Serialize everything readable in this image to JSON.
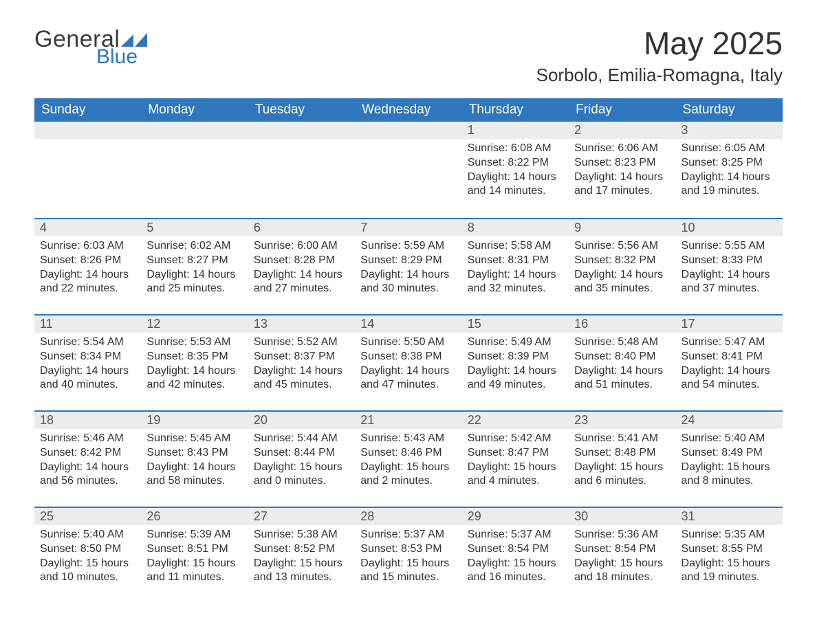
{
  "brand": {
    "word1": "General",
    "word2": "Blue",
    "accent_color": "#2e77bd",
    "text_color": "#3b3b3b"
  },
  "header": {
    "month_title": "May 2025",
    "location": "Sorbolo, Emilia-Romagna, Italy"
  },
  "colors": {
    "header_bg": "#2e77bd",
    "header_text": "#ffffff",
    "daynum_bg": "#ececec",
    "row_divider": "#2e77bd",
    "body_text": "#333333",
    "page_bg": "#ffffff"
  },
  "typography": {
    "month_title_fontsize": 46,
    "location_fontsize": 26,
    "weekday_fontsize": 19,
    "daynum_fontsize": 18,
    "body_fontsize": 16
  },
  "calendar": {
    "type": "table",
    "weekdays": [
      "Sunday",
      "Monday",
      "Tuesday",
      "Wednesday",
      "Thursday",
      "Friday",
      "Saturday"
    ],
    "leading_blanks": 4,
    "days": [
      {
        "n": "1",
        "sunrise": "Sunrise: 6:08 AM",
        "sunset": "Sunset: 8:22 PM",
        "daylight1": "Daylight: 14 hours",
        "daylight2": "and 14 minutes."
      },
      {
        "n": "2",
        "sunrise": "Sunrise: 6:06 AM",
        "sunset": "Sunset: 8:23 PM",
        "daylight1": "Daylight: 14 hours",
        "daylight2": "and 17 minutes."
      },
      {
        "n": "3",
        "sunrise": "Sunrise: 6:05 AM",
        "sunset": "Sunset: 8:25 PM",
        "daylight1": "Daylight: 14 hours",
        "daylight2": "and 19 minutes."
      },
      {
        "n": "4",
        "sunrise": "Sunrise: 6:03 AM",
        "sunset": "Sunset: 8:26 PM",
        "daylight1": "Daylight: 14 hours",
        "daylight2": "and 22 minutes."
      },
      {
        "n": "5",
        "sunrise": "Sunrise: 6:02 AM",
        "sunset": "Sunset: 8:27 PM",
        "daylight1": "Daylight: 14 hours",
        "daylight2": "and 25 minutes."
      },
      {
        "n": "6",
        "sunrise": "Sunrise: 6:00 AM",
        "sunset": "Sunset: 8:28 PM",
        "daylight1": "Daylight: 14 hours",
        "daylight2": "and 27 minutes."
      },
      {
        "n": "7",
        "sunrise": "Sunrise: 5:59 AM",
        "sunset": "Sunset: 8:29 PM",
        "daylight1": "Daylight: 14 hours",
        "daylight2": "and 30 minutes."
      },
      {
        "n": "8",
        "sunrise": "Sunrise: 5:58 AM",
        "sunset": "Sunset: 8:31 PM",
        "daylight1": "Daylight: 14 hours",
        "daylight2": "and 32 minutes."
      },
      {
        "n": "9",
        "sunrise": "Sunrise: 5:56 AM",
        "sunset": "Sunset: 8:32 PM",
        "daylight1": "Daylight: 14 hours",
        "daylight2": "and 35 minutes."
      },
      {
        "n": "10",
        "sunrise": "Sunrise: 5:55 AM",
        "sunset": "Sunset: 8:33 PM",
        "daylight1": "Daylight: 14 hours",
        "daylight2": "and 37 minutes."
      },
      {
        "n": "11",
        "sunrise": "Sunrise: 5:54 AM",
        "sunset": "Sunset: 8:34 PM",
        "daylight1": "Daylight: 14 hours",
        "daylight2": "and 40 minutes."
      },
      {
        "n": "12",
        "sunrise": "Sunrise: 5:53 AM",
        "sunset": "Sunset: 8:35 PM",
        "daylight1": "Daylight: 14 hours",
        "daylight2": "and 42 minutes."
      },
      {
        "n": "13",
        "sunrise": "Sunrise: 5:52 AM",
        "sunset": "Sunset: 8:37 PM",
        "daylight1": "Daylight: 14 hours",
        "daylight2": "and 45 minutes."
      },
      {
        "n": "14",
        "sunrise": "Sunrise: 5:50 AM",
        "sunset": "Sunset: 8:38 PM",
        "daylight1": "Daylight: 14 hours",
        "daylight2": "and 47 minutes."
      },
      {
        "n": "15",
        "sunrise": "Sunrise: 5:49 AM",
        "sunset": "Sunset: 8:39 PM",
        "daylight1": "Daylight: 14 hours",
        "daylight2": "and 49 minutes."
      },
      {
        "n": "16",
        "sunrise": "Sunrise: 5:48 AM",
        "sunset": "Sunset: 8:40 PM",
        "daylight1": "Daylight: 14 hours",
        "daylight2": "and 51 minutes."
      },
      {
        "n": "17",
        "sunrise": "Sunrise: 5:47 AM",
        "sunset": "Sunset: 8:41 PM",
        "daylight1": "Daylight: 14 hours",
        "daylight2": "and 54 minutes."
      },
      {
        "n": "18",
        "sunrise": "Sunrise: 5:46 AM",
        "sunset": "Sunset: 8:42 PM",
        "daylight1": "Daylight: 14 hours",
        "daylight2": "and 56 minutes."
      },
      {
        "n": "19",
        "sunrise": "Sunrise: 5:45 AM",
        "sunset": "Sunset: 8:43 PM",
        "daylight1": "Daylight: 14 hours",
        "daylight2": "and 58 minutes."
      },
      {
        "n": "20",
        "sunrise": "Sunrise: 5:44 AM",
        "sunset": "Sunset: 8:44 PM",
        "daylight1": "Daylight: 15 hours",
        "daylight2": "and 0 minutes."
      },
      {
        "n": "21",
        "sunrise": "Sunrise: 5:43 AM",
        "sunset": "Sunset: 8:46 PM",
        "daylight1": "Daylight: 15 hours",
        "daylight2": "and 2 minutes."
      },
      {
        "n": "22",
        "sunrise": "Sunrise: 5:42 AM",
        "sunset": "Sunset: 8:47 PM",
        "daylight1": "Daylight: 15 hours",
        "daylight2": "and 4 minutes."
      },
      {
        "n": "23",
        "sunrise": "Sunrise: 5:41 AM",
        "sunset": "Sunset: 8:48 PM",
        "daylight1": "Daylight: 15 hours",
        "daylight2": "and 6 minutes."
      },
      {
        "n": "24",
        "sunrise": "Sunrise: 5:40 AM",
        "sunset": "Sunset: 8:49 PM",
        "daylight1": "Daylight: 15 hours",
        "daylight2": "and 8 minutes."
      },
      {
        "n": "25",
        "sunrise": "Sunrise: 5:40 AM",
        "sunset": "Sunset: 8:50 PM",
        "daylight1": "Daylight: 15 hours",
        "daylight2": "and 10 minutes."
      },
      {
        "n": "26",
        "sunrise": "Sunrise: 5:39 AM",
        "sunset": "Sunset: 8:51 PM",
        "daylight1": "Daylight: 15 hours",
        "daylight2": "and 11 minutes."
      },
      {
        "n": "27",
        "sunrise": "Sunrise: 5:38 AM",
        "sunset": "Sunset: 8:52 PM",
        "daylight1": "Daylight: 15 hours",
        "daylight2": "and 13 minutes."
      },
      {
        "n": "28",
        "sunrise": "Sunrise: 5:37 AM",
        "sunset": "Sunset: 8:53 PM",
        "daylight1": "Daylight: 15 hours",
        "daylight2": "and 15 minutes."
      },
      {
        "n": "29",
        "sunrise": "Sunrise: 5:37 AM",
        "sunset": "Sunset: 8:54 PM",
        "daylight1": "Daylight: 15 hours",
        "daylight2": "and 16 minutes."
      },
      {
        "n": "30",
        "sunrise": "Sunrise: 5:36 AM",
        "sunset": "Sunset: 8:54 PM",
        "daylight1": "Daylight: 15 hours",
        "daylight2": "and 18 minutes."
      },
      {
        "n": "31",
        "sunrise": "Sunrise: 5:35 AM",
        "sunset": "Sunset: 8:55 PM",
        "daylight1": "Daylight: 15 hours",
        "daylight2": "and 19 minutes."
      }
    ]
  }
}
